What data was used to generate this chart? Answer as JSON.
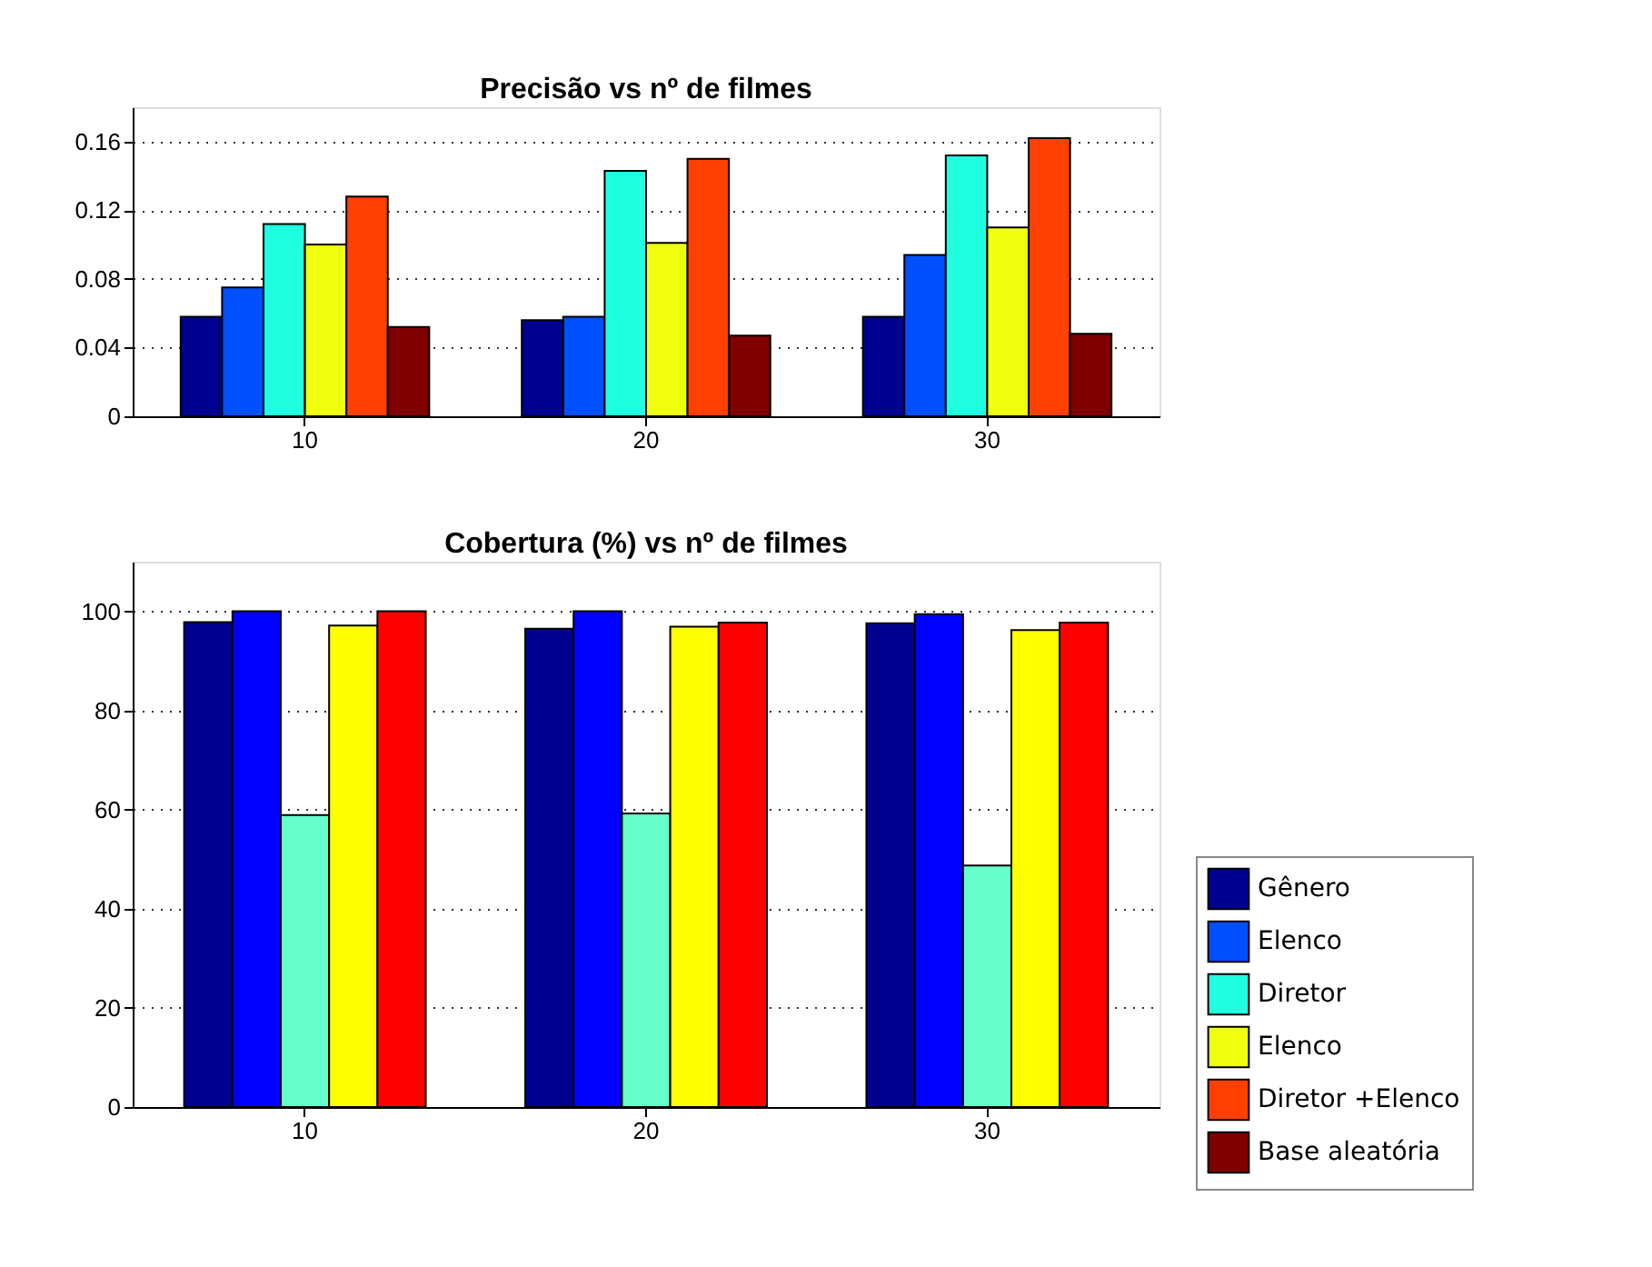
{
  "chart_data": [
    {
      "type": "bar",
      "title": "Precisão vs nº de filmes",
      "categories": [
        "10",
        "20",
        "30"
      ],
      "ylim": [
        0,
        0.18
      ],
      "yticks": [
        0,
        0.04,
        0.08,
        0.12,
        0.16
      ],
      "grid": "y",
      "legend": "right",
      "series": [
        {
          "name": "Gênero",
          "color": "#000090",
          "values": [
            0.058,
            0.056,
            0.058
          ]
        },
        {
          "name": "Elenco",
          "color": "#0050ff",
          "values": [
            0.075,
            0.058,
            0.094
          ]
        },
        {
          "name": "Diretor",
          "color": "#20ffe0",
          "values": [
            0.112,
            0.143,
            0.152
          ]
        },
        {
          "name": "Elenco",
          "color": "#eeff10",
          "values": [
            0.1,
            0.101,
            0.11
          ]
        },
        {
          "name": "Diretor +Elenco",
          "color": "#ff4000",
          "values": [
            0.128,
            0.15,
            0.162
          ]
        },
        {
          "name": "Base aleatória",
          "color": "#800000",
          "values": [
            0.052,
            0.047,
            0.048
          ]
        }
      ]
    },
    {
      "type": "bar",
      "title": "Cobertura (%) vs nº de filmes",
      "categories": [
        "10",
        "20",
        "30"
      ],
      "ylim": [
        0,
        110
      ],
      "yticks": [
        0,
        20,
        40,
        60,
        80,
        100
      ],
      "grid": "y",
      "series": [
        {
          "color": "#000090",
          "values": [
            97.8,
            96.5,
            97.6
          ]
        },
        {
          "color": "#0000ff",
          "values": [
            100,
            100,
            99.4
          ]
        },
        {
          "color": "#66ffcc",
          "values": [
            58.9,
            59.2,
            48.7
          ]
        },
        {
          "color": "#ffff00",
          "values": [
            97.1,
            96.9,
            96.2
          ]
        },
        {
          "color": "#ff0000",
          "values": [
            100,
            97.7,
            97.7
          ]
        }
      ]
    }
  ]
}
